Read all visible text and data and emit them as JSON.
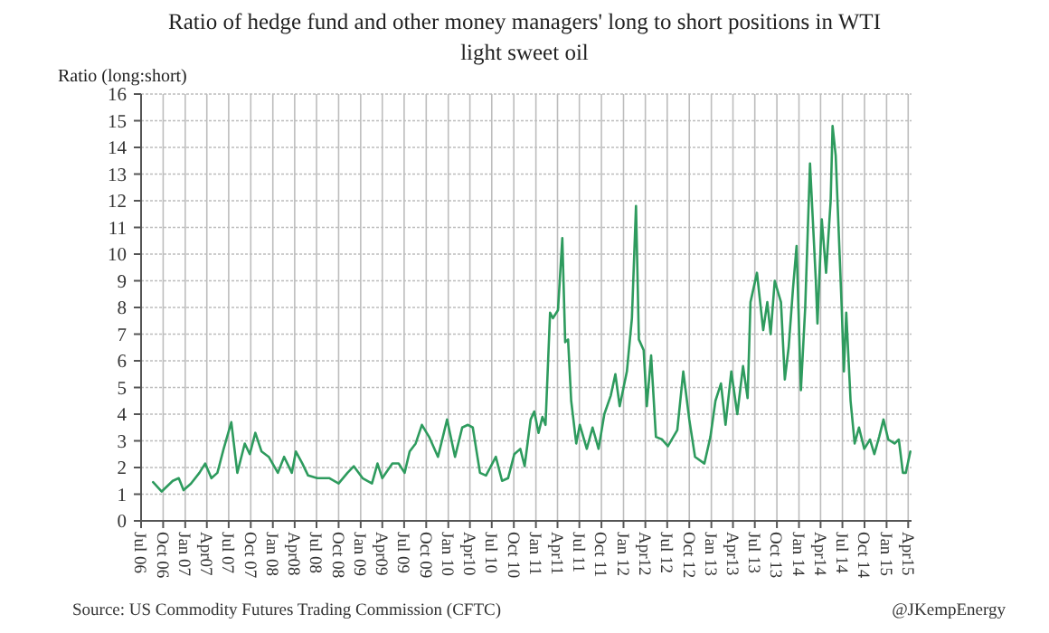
{
  "chart_data": {
    "type": "line",
    "title": "Ratio of hedge fund and other money managers' long to short positions in WTI light sweet oil",
    "ylabel": "Ratio (long:short)",
    "annotations": [
      "Source: US Commodity Futures Trading Commission (CFTC)",
      "@JKempEnergy"
    ],
    "grid": true,
    "marker": "none",
    "line_style": "solid",
    "ylim": [
      0,
      16
    ],
    "yticks": [
      0,
      1,
      2,
      3,
      4,
      5,
      6,
      7,
      8,
      9,
      10,
      11,
      12,
      13,
      14,
      15,
      16
    ],
    "xlim": [
      "2006-07-01",
      "2015-04-15"
    ],
    "xticks": [
      {
        "value": "2006-07-01",
        "label": "Jul 06"
      },
      {
        "value": "2006-10-01",
        "label": "Oct 06"
      },
      {
        "value": "2007-01-01",
        "label": "Jan 07"
      },
      {
        "value": "2007-04-01",
        "label": "Apr07"
      },
      {
        "value": "2007-07-01",
        "label": "Jul 07"
      },
      {
        "value": "2007-10-01",
        "label": "Oct 07"
      },
      {
        "value": "2008-01-01",
        "label": "Jan 08"
      },
      {
        "value": "2008-04-01",
        "label": "Apr08"
      },
      {
        "value": "2008-07-01",
        "label": "Jul 08"
      },
      {
        "value": "2008-10-01",
        "label": "Oct 08"
      },
      {
        "value": "2009-01-01",
        "label": "Jan 09"
      },
      {
        "value": "2009-04-01",
        "label": "Apr09"
      },
      {
        "value": "2009-07-01",
        "label": "Jul 09"
      },
      {
        "value": "2009-10-01",
        "label": "Oct 09"
      },
      {
        "value": "2010-01-01",
        "label": "Jan 10"
      },
      {
        "value": "2010-04-01",
        "label": "Apr10"
      },
      {
        "value": "2010-07-01",
        "label": "Jul 10"
      },
      {
        "value": "2010-10-01",
        "label": "Oct 10"
      },
      {
        "value": "2011-01-01",
        "label": "Jan 11"
      },
      {
        "value": "2011-04-01",
        "label": "Apr11"
      },
      {
        "value": "2011-07-01",
        "label": "Jul 11"
      },
      {
        "value": "2011-10-01",
        "label": "Oct 11"
      },
      {
        "value": "2012-01-01",
        "label": "Jan 12"
      },
      {
        "value": "2012-04-01",
        "label": "Apr12"
      },
      {
        "value": "2012-07-01",
        "label": "Jul 12"
      },
      {
        "value": "2012-10-01",
        "label": "Oct 12"
      },
      {
        "value": "2013-01-01",
        "label": "Jan 13"
      },
      {
        "value": "2013-04-01",
        "label": "Apr13"
      },
      {
        "value": "2013-07-01",
        "label": "Jul 13"
      },
      {
        "value": "2013-10-01",
        "label": "Oct 13"
      },
      {
        "value": "2014-01-01",
        "label": "Jan 14"
      },
      {
        "value": "2014-04-01",
        "label": "Apr14"
      },
      {
        "value": "2014-07-01",
        "label": "Jul 14"
      },
      {
        "value": "2014-10-01",
        "label": "Oct 14"
      },
      {
        "value": "2015-01-01",
        "label": "Jan 15"
      },
      {
        "value": "2015-04-01",
        "label": "Apr15"
      }
    ],
    "series": [
      {
        "color": "#2e9b5e",
        "x": [
          "2006-08-20",
          "2006-09-25",
          "2006-11-10",
          "2006-12-05",
          "2006-12-25",
          "2007-01-25",
          "2007-03-01",
          "2007-03-25",
          "2007-04-20",
          "2007-05-15",
          "2007-06-10",
          "2007-07-12",
          "2007-08-06",
          "2007-09-06",
          "2007-09-27",
          "2007-10-20",
          "2007-11-15",
          "2007-12-15",
          "2008-01-22",
          "2008-02-17",
          "2008-03-20",
          "2008-04-06",
          "2008-05-03",
          "2008-05-27",
          "2008-07-04",
          "2008-08-24",
          "2008-10-01",
          "2008-11-07",
          "2008-12-03",
          "2009-01-09",
          "2009-02-17",
          "2009-03-12",
          "2009-04-01",
          "2009-05-13",
          "2009-06-08",
          "2009-07-03",
          "2009-07-24",
          "2009-08-18",
          "2009-09-13",
          "2009-10-13",
          "2009-11-19",
          "2009-12-27",
          "2010-01-29",
          "2010-02-28",
          "2010-03-24",
          "2010-04-13",
          "2010-05-13",
          "2010-06-07",
          "2010-07-18",
          "2010-08-13",
          "2010-09-07",
          "2010-10-03",
          "2010-10-28",
          "2010-11-15",
          "2010-12-10",
          "2010-12-25",
          "2011-01-12",
          "2011-01-28",
          "2011-02-10",
          "2011-03-01",
          "2011-03-13",
          "2011-04-03",
          "2011-04-21",
          "2011-05-03",
          "2011-05-15",
          "2011-05-28",
          "2011-06-18",
          "2011-07-03",
          "2011-08-01",
          "2011-08-25",
          "2011-09-19",
          "2011-10-13",
          "2011-11-09",
          "2011-11-28",
          "2011-12-16",
          "2012-01-15",
          "2012-02-05",
          "2012-02-22",
          "2012-03-05",
          "2012-03-25",
          "2012-04-07",
          "2012-04-25",
          "2012-05-15",
          "2012-06-10",
          "2012-07-04",
          "2012-08-12",
          "2012-09-06",
          "2012-10-01",
          "2012-10-25",
          "2012-12-03",
          "2012-12-28",
          "2013-01-18",
          "2013-02-10",
          "2013-03-01",
          "2013-03-25",
          "2013-04-19",
          "2013-05-13",
          "2013-06-01",
          "2013-06-13",
          "2013-07-10",
          "2013-08-05",
          "2013-08-22",
          "2013-09-05",
          "2013-09-22",
          "2013-10-18",
          "2013-11-03",
          "2013-11-19",
          "2013-12-07",
          "2013-12-22",
          "2014-01-09",
          "2014-01-27",
          "2014-02-16",
          "2014-03-12",
          "2014-03-19",
          "2014-04-06",
          "2014-04-24",
          "2014-05-13",
          "2014-05-21",
          "2014-06-03",
          "2014-06-28",
          "2014-07-07",
          "2014-07-17",
          "2014-08-04",
          "2014-08-21",
          "2014-09-08",
          "2014-09-30",
          "2014-10-24",
          "2014-11-11",
          "2014-12-01",
          "2014-12-19",
          "2015-01-08",
          "2015-02-03",
          "2015-02-21",
          "2015-03-10",
          "2015-03-22",
          "2015-04-10"
        ],
        "values": [
          1.45,
          1.1,
          1.5,
          1.6,
          1.15,
          1.4,
          1.8,
          2.15,
          1.6,
          1.8,
          2.7,
          3.7,
          1.8,
          2.9,
          2.5,
          3.3,
          2.6,
          2.4,
          1.8,
          2.4,
          1.8,
          2.6,
          2.15,
          1.7,
          1.6,
          1.6,
          1.4,
          1.8,
          2.05,
          1.6,
          1.4,
          2.15,
          1.6,
          2.15,
          2.15,
          1.8,
          2.6,
          2.9,
          3.6,
          3.15,
          2.4,
          3.8,
          2.4,
          3.5,
          3.6,
          3.5,
          1.8,
          1.7,
          2.4,
          1.5,
          1.6,
          2.5,
          2.7,
          2.05,
          3.8,
          4.1,
          3.3,
          3.9,
          3.6,
          7.8,
          7.6,
          7.9,
          10.6,
          6.7,
          6.8,
          4.5,
          2.9,
          3.6,
          2.7,
          3.5,
          2.7,
          4.0,
          4.7,
          5.5,
          4.3,
          5.6,
          7.6,
          11.8,
          6.8,
          6.4,
          4.3,
          6.2,
          3.15,
          3.05,
          2.8,
          3.4,
          5.6,
          3.8,
          2.4,
          2.15,
          3.15,
          4.5,
          5.15,
          3.6,
          5.6,
          4.0,
          5.8,
          4.6,
          8.2,
          9.3,
          7.15,
          8.2,
          7.0,
          9.0,
          8.2,
          5.3,
          6.5,
          8.7,
          10.3,
          4.9,
          8.0,
          13.4,
          9.05,
          7.4,
          11.3,
          9.3,
          12.0,
          14.8,
          13.7,
          8.0,
          5.6,
          7.8,
          4.5,
          2.9,
          3.5,
          2.7,
          3.05,
          2.5,
          3.15,
          3.8,
          3.05,
          2.9,
          3.05,
          1.8,
          1.8,
          2.6
        ]
      }
    ]
  }
}
